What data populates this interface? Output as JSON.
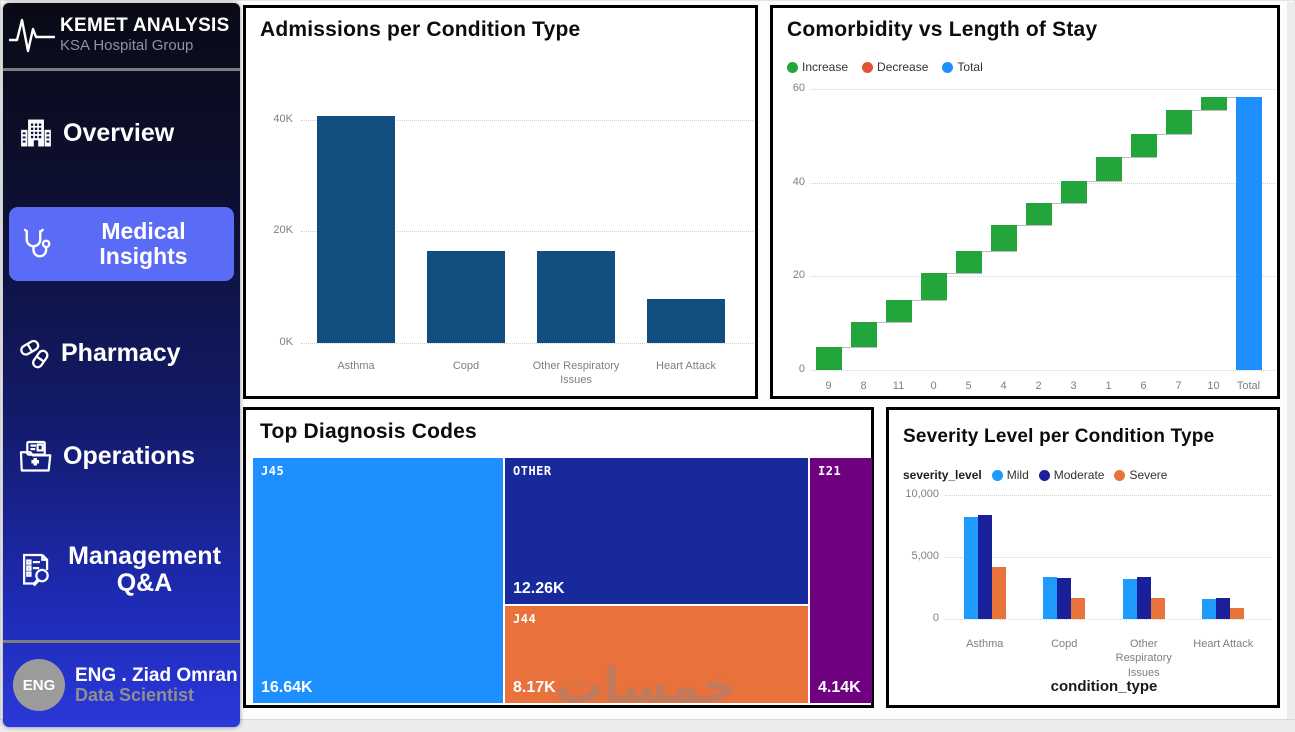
{
  "page": {
    "watermark": "خمسات"
  },
  "sidebar": {
    "brand": {
      "title": "KEMET ANALYSIS",
      "subtitle": "KSA Hospital Group"
    },
    "items": [
      {
        "label": "Overview",
        "icon": "hospital-icon",
        "active": false
      },
      {
        "label": "Medical Insights",
        "icon": "stethoscope-icon",
        "active": true
      },
      {
        "label": "Pharmacy",
        "icon": "pills-icon",
        "active": false
      },
      {
        "label": "Operations",
        "icon": "medical-folder-icon",
        "active": false
      },
      {
        "label": "Management Q&A",
        "icon": "clipboard-search-icon",
        "active": false
      }
    ],
    "footer": {
      "avatar_initials": "ENG",
      "name": "ENG . Ziad Omran",
      "role": "Data Scientist"
    },
    "colors": {
      "active_item": "#5a6bf5"
    }
  },
  "chart_data": [
    {
      "id": "admissions",
      "type": "bar",
      "title": "Admissions per Condition Type",
      "categories": [
        "Asthma",
        "Copd",
        "Other Respiratory Issues",
        "Heart Attack"
      ],
      "values": [
        40600,
        16500,
        16400,
        7800
      ],
      "yticks": [
        0,
        20000,
        40000
      ],
      "ytick_labels": [
        "0K",
        "20K",
        "40K"
      ],
      "ylim": [
        0,
        43000
      ],
      "bar_color": "#124e80",
      "grid": true
    },
    {
      "id": "comorbidity",
      "type": "waterfall",
      "title": "Comorbidity vs Length of Stay",
      "legend": [
        {
          "label": "Increase",
          "color": "#22a63c"
        },
        {
          "label": "Decrease",
          "color": "#e0523c"
        },
        {
          "label": "Total",
          "color": "#1e8fff"
        }
      ],
      "categories": [
        "9",
        "8",
        "11",
        "0",
        "5",
        "4",
        "2",
        "3",
        "1",
        "6",
        "7",
        "10",
        "Total"
      ],
      "increments": [
        5.0,
        5.3,
        4.7,
        5.8,
        4.7,
        5.5,
        4.7,
        4.8,
        5.0,
        5.0,
        5.0,
        2.8
      ],
      "total": 58.3,
      "yticks": [
        0,
        20,
        40,
        60
      ],
      "ylim": [
        0,
        62
      ],
      "grid": true,
      "legend_position": "top-left"
    },
    {
      "id": "diagnosis",
      "type": "treemap",
      "title": "Top Diagnosis Codes",
      "tiles": [
        {
          "label": "J45",
          "value": "16.64K",
          "color": "#1e8fff"
        },
        {
          "label": "OTHER",
          "value": "12.26K",
          "color": "#18299b"
        },
        {
          "label": "J44",
          "value": "8.17K",
          "color": "#e8713c"
        },
        {
          "label": "I21",
          "value": "4.14K",
          "color": "#6f0180"
        }
      ]
    },
    {
      "id": "severity",
      "type": "grouped-bar",
      "title": "Severity Level per Condition Type",
      "legend_title": "severity_level",
      "categories": [
        "Asthma",
        "Copd",
        "Other Respiratory Issues",
        "Heart Attack"
      ],
      "series": [
        {
          "name": "Mild",
          "color": "#1e9bff",
          "values": [
            8200,
            3400,
            3250,
            1600
          ]
        },
        {
          "name": "Moderate",
          "color": "#1a2099",
          "values": [
            8350,
            3300,
            3400,
            1700
          ]
        },
        {
          "name": "Severe",
          "color": "#e8743b",
          "values": [
            4200,
            1700,
            1700,
            900
          ]
        }
      ],
      "xlabel": "condition_type",
      "yticks": [
        0,
        5000,
        10000
      ],
      "ytick_labels": [
        "0",
        "5,000",
        "10,000"
      ],
      "ylim": [
        0,
        10400
      ],
      "grid": true,
      "legend_position": "top-left"
    }
  ]
}
